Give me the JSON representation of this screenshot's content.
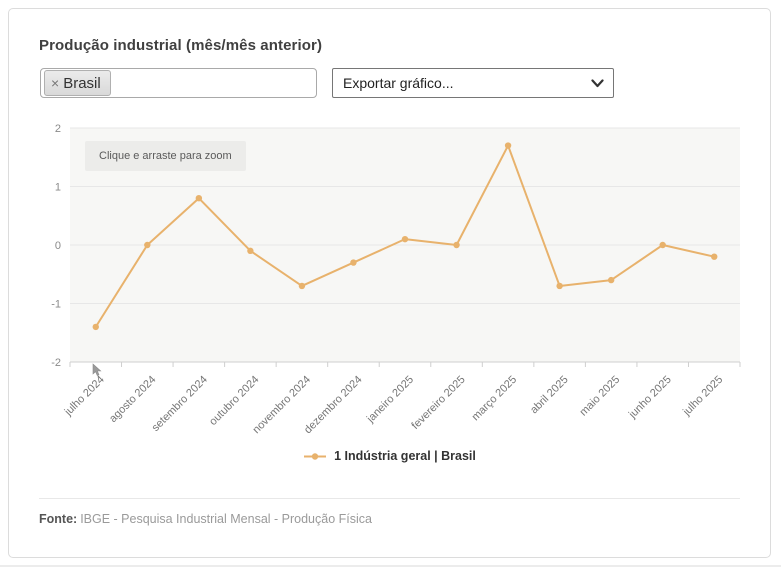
{
  "header": {
    "title": "Produção industrial (mês/mês anterior)"
  },
  "controls": {
    "territory_input": {
      "tag_label": "Brasil",
      "remove_symbol": "×"
    },
    "export_select": {
      "selected": "Exportar gráfico..."
    }
  },
  "chart": {
    "zoom_hint": "Clique e arraste para zoom",
    "legend_label": "1 Indústria geral | Brasil"
  },
  "chart_data": {
    "type": "line",
    "title": "Produção industrial (mês/mês anterior)",
    "categories": [
      "julho 2024",
      "agosto 2024",
      "setembro 2024",
      "outubro 2024",
      "novembro 2024",
      "dezembro 2024",
      "janeiro 2025",
      "fevereiro 2025",
      "março 2025",
      "abril 2025",
      "maio 2025",
      "junho 2025",
      "julho 2025"
    ],
    "series": [
      {
        "name": "1 Indústria geral | Brasil",
        "values": [
          -1.4,
          0,
          0.8,
          -0.1,
          -0.7,
          -0.3,
          0.1,
          0,
          1.7,
          -0.7,
          -0.6,
          0,
          -0.2
        ]
      }
    ],
    "ylim": [
      -2,
      2
    ],
    "yticks": [
      2,
      1,
      0,
      -1,
      -2
    ],
    "grid": true,
    "legend_position": "bottom",
    "line_color": "#e8b26c",
    "plot_background": "#f7f7f5",
    "xlabel": "",
    "ylabel": ""
  },
  "footer": {
    "source_label": "Fonte:",
    "source_text": "IBGE - Pesquisa Industrial Mensal - Produção Física"
  }
}
